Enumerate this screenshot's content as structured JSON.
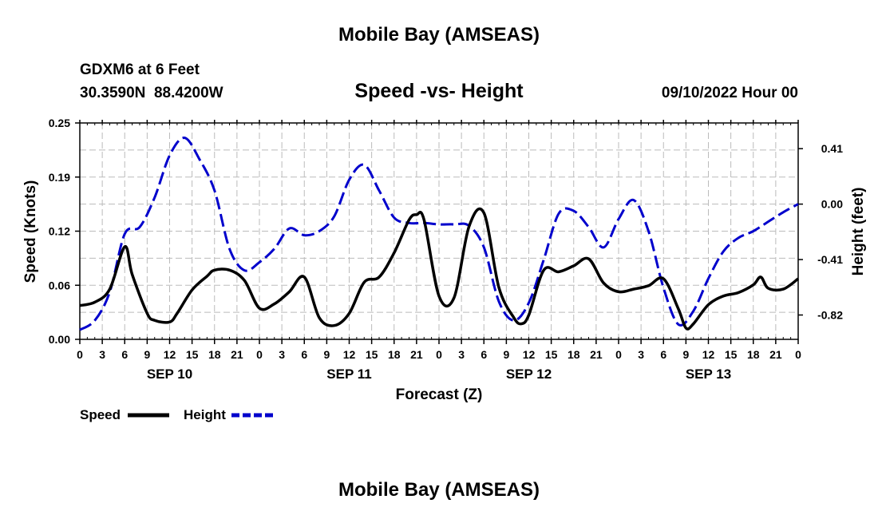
{
  "header": {
    "title": "Mobile Bay (AMSEAS)",
    "station": "GDXM6 at 6 Feet",
    "coords": "30.3590N  88.4200W",
    "subtitle": "Speed -vs- Height",
    "datetime": "09/10/2022 Hour 00"
  },
  "footer": {
    "title": "Mobile Bay (AMSEAS)"
  },
  "legend": {
    "speed_label": "Speed",
    "height_label": "Height"
  },
  "colors": {
    "speed": "#000000",
    "height": "#0000cc",
    "grid": "#bbbbbb"
  },
  "chart_data": {
    "type": "line",
    "title": "Speed -vs- Height",
    "xlabel": "Forecast (Z)",
    "ylabel": "Speed (Knots)",
    "y2label": "Height (feet)",
    "xlim": [
      0,
      96
    ],
    "ylim": [
      0,
      0.25
    ],
    "y2lim": [
      -1.0,
      0.6
    ],
    "x_tick_labels": [
      "0",
      "3",
      "6",
      "9",
      "12",
      "15",
      "18",
      "21",
      "0",
      "3",
      "6",
      "9",
      "12",
      "15",
      "18",
      "21",
      "0",
      "3",
      "6",
      "9",
      "12",
      "15",
      "18",
      "21",
      "0",
      "3",
      "6",
      "9",
      "12",
      "15",
      "18",
      "21",
      "0"
    ],
    "y_ticks": [
      "0.00",
      "0.06",
      "0.12",
      "0.19",
      "0.25"
    ],
    "y_tick_values": [
      0,
      0.0625,
      0.125,
      0.1875,
      0.25
    ],
    "y2_ticks": [
      "-0.82",
      "-0.41",
      "0.00",
      "0.41"
    ],
    "y2_tick_values": [
      -0.82,
      -0.41,
      0.0,
      0.41
    ],
    "date_labels": [
      {
        "label": "SEP 10",
        "hour": 12
      },
      {
        "label": "SEP 11",
        "hour": 36
      },
      {
        "label": "SEP 12",
        "hour": 60
      },
      {
        "label": "SEP 13",
        "hour": 84
      }
    ],
    "series": [
      {
        "name": "Speed",
        "axis": "left",
        "x": [
          0,
          2,
          4,
          6,
          7,
          9,
          10,
          12,
          13,
          15,
          17,
          18,
          20,
          22,
          24,
          26,
          28,
          30,
          32,
          34,
          36,
          38,
          40,
          42,
          44,
          45,
          46,
          48,
          50,
          52,
          54,
          56,
          58,
          59,
          60,
          62,
          64,
          66,
          68,
          70,
          72,
          74,
          76,
          78,
          80,
          81,
          82,
          84,
          86,
          88,
          90,
          91,
          92,
          94,
          96
        ],
        "values": [
          0.039,
          0.043,
          0.058,
          0.107,
          0.075,
          0.03,
          0.022,
          0.02,
          0.03,
          0.057,
          0.073,
          0.08,
          0.08,
          0.068,
          0.036,
          0.041,
          0.055,
          0.072,
          0.025,
          0.016,
          0.03,
          0.066,
          0.072,
          0.1,
          0.138,
          0.144,
          0.138,
          0.05,
          0.048,
          0.13,
          0.146,
          0.06,
          0.025,
          0.018,
          0.028,
          0.08,
          0.078,
          0.085,
          0.093,
          0.065,
          0.055,
          0.058,
          0.062,
          0.07,
          0.035,
          0.013,
          0.018,
          0.04,
          0.05,
          0.054,
          0.063,
          0.072,
          0.059,
          0.058,
          0.07
        ]
      },
      {
        "name": "Height",
        "axis": "right",
        "x": [
          0,
          2,
          4,
          6,
          8,
          10,
          12,
          14,
          16,
          18,
          20,
          22,
          24,
          26,
          28,
          30,
          32,
          34,
          36,
          38,
          40,
          42,
          44,
          46,
          48,
          50,
          52,
          54,
          56,
          58,
          60,
          62,
          64,
          66,
          68,
          70,
          72,
          74,
          76,
          78,
          80,
          82,
          84,
          86,
          88,
          90,
          92,
          94,
          96
        ],
        "values": [
          -0.93,
          -0.86,
          -0.65,
          -0.22,
          -0.17,
          0.05,
          0.36,
          0.49,
          0.33,
          0.1,
          -0.33,
          -0.49,
          -0.43,
          -0.33,
          -0.18,
          -0.23,
          -0.2,
          -0.09,
          0.18,
          0.29,
          0.1,
          -0.1,
          -0.14,
          -0.14,
          -0.15,
          -0.15,
          -0.16,
          -0.32,
          -0.72,
          -0.86,
          -0.73,
          -0.41,
          -0.07,
          -0.05,
          -0.17,
          -0.32,
          -0.11,
          0.03,
          -0.2,
          -0.62,
          -0.89,
          -0.79,
          -0.55,
          -0.35,
          -0.25,
          -0.2,
          -0.13,
          -0.06,
          0.0
        ]
      }
    ]
  }
}
